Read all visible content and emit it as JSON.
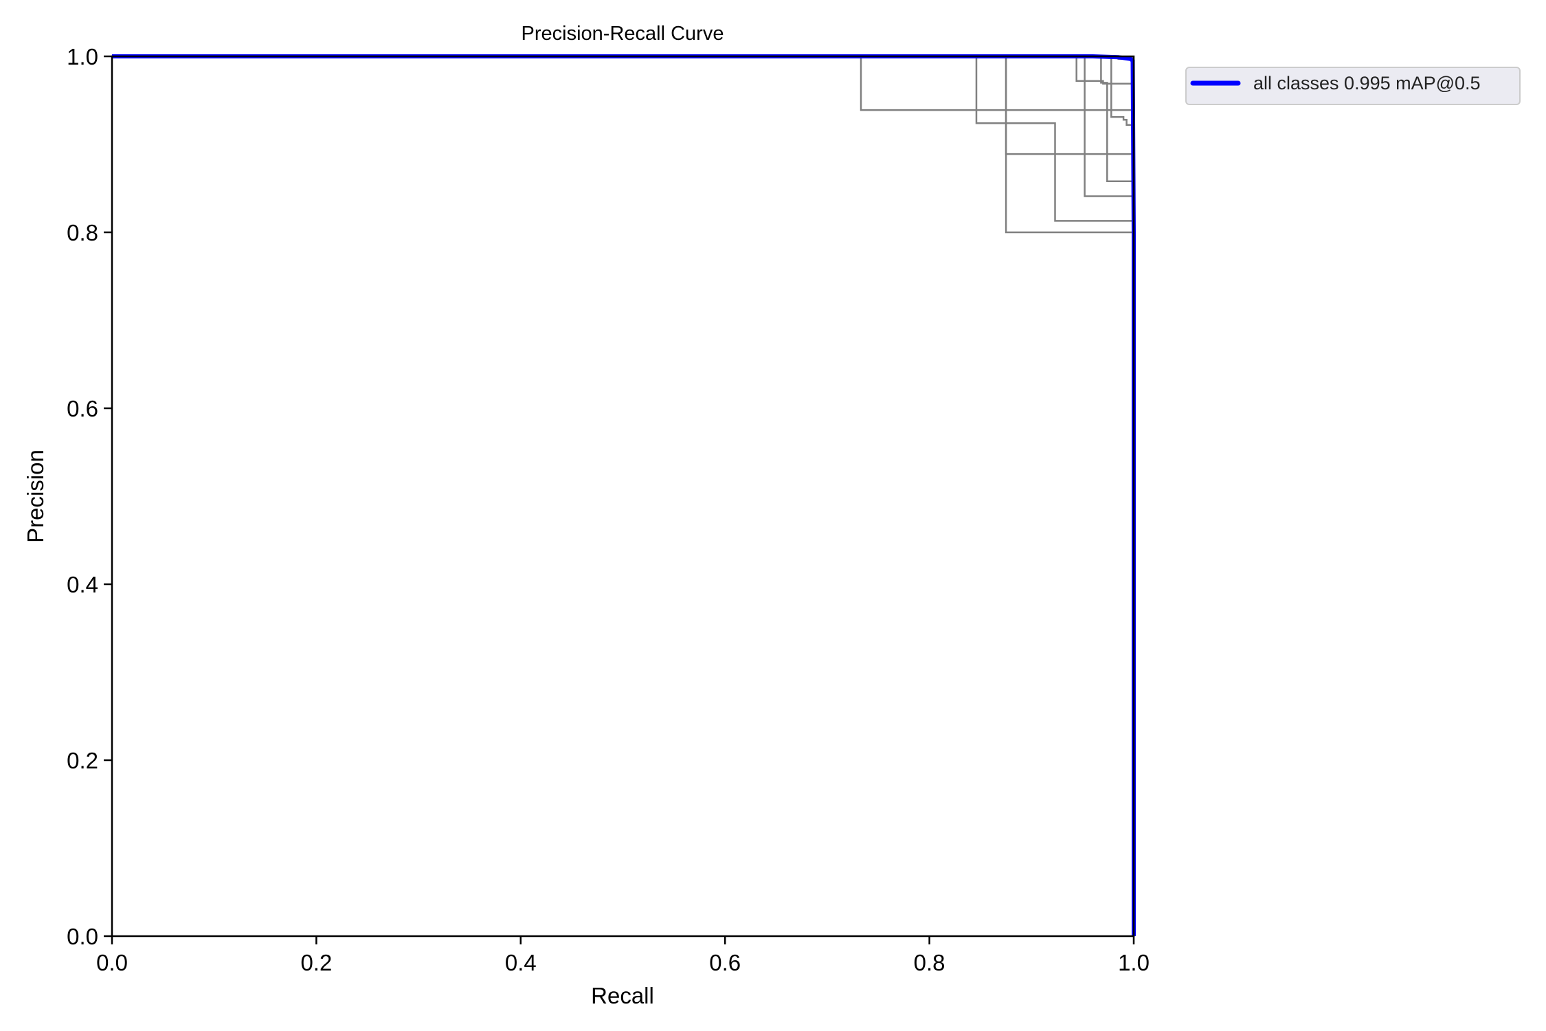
{
  "chart_data": {
    "type": "line",
    "title": "Precision-Recall Curve",
    "xlabel": "Recall",
    "ylabel": "Precision",
    "xlim": [
      0.0,
      1.0
    ],
    "ylim": [
      0.0,
      1.0
    ],
    "xticks": [
      "0.0",
      "0.2",
      "0.4",
      "0.6",
      "0.8",
      "1.0"
    ],
    "yticks": [
      "0.0",
      "0.2",
      "0.4",
      "0.6",
      "0.8",
      "1.0"
    ],
    "grid": false,
    "legend_position": "outside-upper-right",
    "series": [
      {
        "name": "all classes 0.995 mAP@0.5",
        "color": "#0000ff",
        "emphasis": "thick",
        "x": [
          0.0,
          0.96,
          0.985,
          0.997,
          0.999,
          1.0,
          1.0
        ],
        "y": [
          1.0,
          1.0,
          0.999,
          0.997,
          0.995,
          0.8,
          0.0
        ]
      },
      {
        "color": "#808080",
        "x": [
          0.0,
          0.733,
          0.733,
          1.0
        ],
        "y": [
          1.0,
          1.0,
          0.939,
          0.939
        ]
      },
      {
        "color": "#808080",
        "x": [
          0.0,
          0.846,
          0.846,
          0.923,
          0.923,
          1.0
        ],
        "y": [
          1.0,
          1.0,
          0.924,
          0.924,
          0.813,
          0.813
        ]
      },
      {
        "color": "#808080",
        "x": [
          0.0,
          0.875,
          0.875,
          1.0
        ],
        "y": [
          1.0,
          1.0,
          0.8,
          0.8
        ]
      },
      {
        "color": "#808080",
        "x": [
          0.0,
          0.875,
          0.875,
          1.0
        ],
        "y": [
          1.0,
          1.0,
          0.889,
          0.889
        ]
      },
      {
        "color": "#808080",
        "x": [
          0.0,
          0.944,
          0.944,
          0.97,
          0.97,
          1.0
        ],
        "y": [
          1.0,
          1.0,
          0.972,
          0.972,
          0.969,
          0.969
        ]
      },
      {
        "color": "#808080",
        "x": [
          0.0,
          0.952,
          0.952,
          1.0
        ],
        "y": [
          1.0,
          1.0,
          0.841,
          0.841
        ]
      },
      {
        "color": "#808080",
        "x": [
          0.0,
          0.968,
          0.968,
          0.974,
          0.974,
          1.0
        ],
        "y": [
          1.0,
          1.0,
          0.97,
          0.97,
          0.858,
          0.858
        ]
      },
      {
        "color": "#808080",
        "x": [
          0.0,
          0.978,
          0.978,
          0.99,
          0.99,
          0.993,
          0.993,
          1.0
        ],
        "y": [
          1.0,
          1.0,
          0.931,
          0.931,
          0.928,
          0.928,
          0.922,
          0.922
        ]
      },
      {
        "color": "#808080",
        "x": [
          0.0,
          0.96,
          0.96,
          1.0
        ],
        "y": [
          1.0,
          1.0,
          0.999,
          0.999
        ]
      },
      {
        "color": "#808080",
        "x": [
          0.0,
          0.985,
          0.985,
          1.0
        ],
        "y": [
          1.0,
          1.0,
          0.997,
          0.997
        ]
      }
    ]
  }
}
